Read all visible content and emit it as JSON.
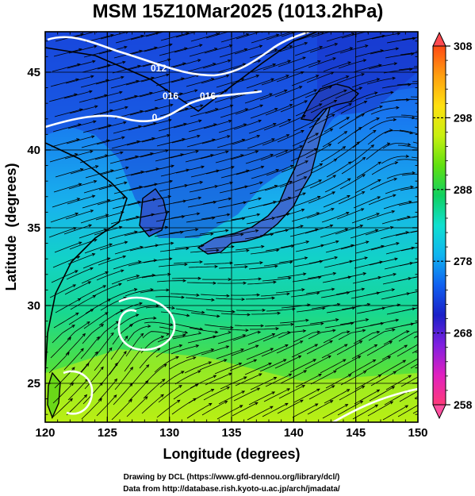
{
  "chart_data": {
    "type": "heatmap",
    "title": "MSM 15Z10Mar2025 (1013.2hPa)",
    "xlabel": "Longitude (degrees)",
    "ylabel": "Latitude  (degrees)",
    "xlim": [
      120,
      150
    ],
    "ylim": [
      22.5,
      47.6
    ],
    "x_ticks": [
      "120",
      "125",
      "130",
      "135",
      "140",
      "145",
      "150"
    ],
    "x_tick_values": [
      120,
      125,
      130,
      135,
      140,
      145,
      150
    ],
    "y_ticks": [
      "25",
      "30",
      "35",
      "40",
      "45"
    ],
    "y_tick_values": [
      25,
      30,
      35,
      40,
      45
    ],
    "grid": true,
    "colorbar": {
      "range": [
        258,
        308
      ],
      "ticks": [
        "308",
        "298",
        "288",
        "278",
        "268",
        "258"
      ],
      "tick_values": [
        308,
        298,
        288,
        278,
        268,
        258
      ],
      "colors": [
        "#ff3b7a",
        "#e020c0",
        "#8020e0",
        "#1a20c8",
        "#1060f0",
        "#10b4f0",
        "#10e0d0",
        "#10d060",
        "#60e010",
        "#c8f010",
        "#ffe010",
        "#ffa010",
        "#ff4a14"
      ]
    },
    "contour_labels": [
      "012",
      "016",
      "016",
      "0"
    ],
    "contour_color": "#ffffff",
    "coast_color": "#000000",
    "streamline_color": "#000000"
  },
  "footer": {
    "line1": "Drawing by DCL (https://www.gfd-dennou.org/library/dcl/)",
    "line2": "Data from http://database.rish.kyoto-u.ac.jp/arch/jmadata/"
  }
}
